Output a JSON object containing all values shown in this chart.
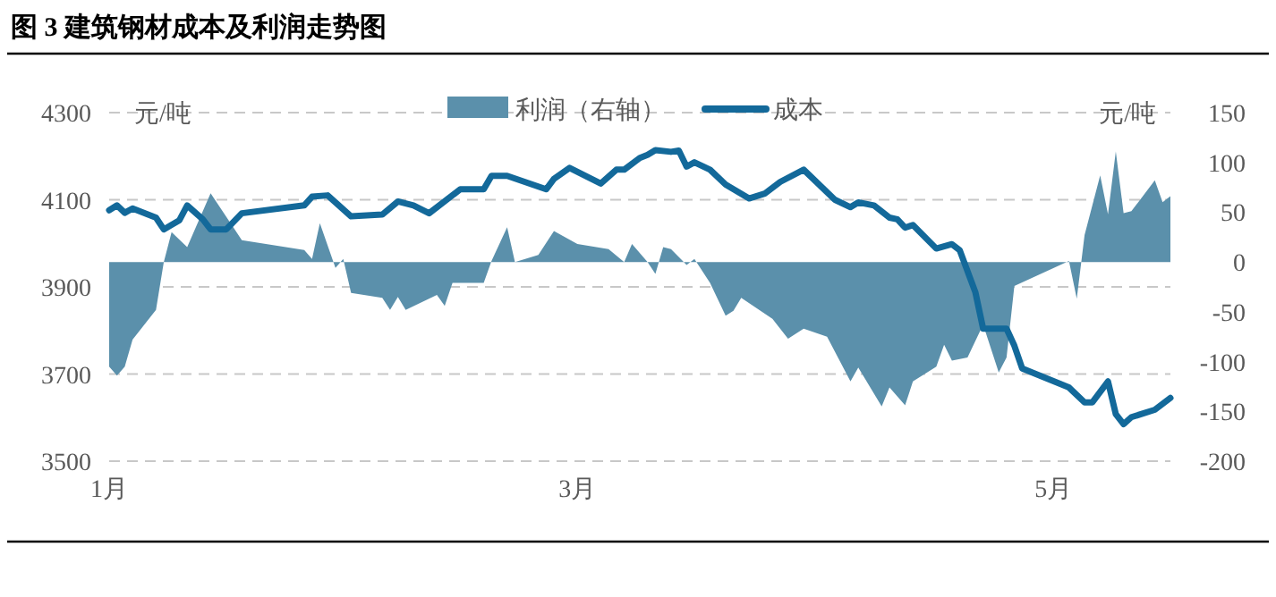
{
  "chart_data": {
    "type": "line",
    "title": "图 3 建筑钢材成本及利润走势图",
    "ylabel": "元/吨",
    "y2label": "元/吨",
    "xlim": [
      "--01-01",
      "--05-16"
    ],
    "xticks": [
      {
        "value": "--01-01",
        "label": "1月"
      },
      {
        "value": "--03-01",
        "label": "3月"
      },
      {
        "value": "--05-01",
        "label": "5月"
      }
    ],
    "ylim": [
      3500,
      4300
    ],
    "yticks": [
      3500,
      3700,
      3900,
      4100,
      4300
    ],
    "y2lim": [
      -200,
      150
    ],
    "y2ticks": [
      -200,
      -150,
      -100,
      -50,
      0,
      50,
      100,
      150
    ],
    "grid": "y",
    "legend": "top",
    "series": [
      {
        "name": "利润（右轴）",
        "type": "area",
        "axis": "y2",
        "color": "#5b90ab",
        "x": [
          "--01-01",
          "--01-02",
          "--01-03",
          "--01-04",
          "--01-07",
          "--01-08",
          "--01-09",
          "--01-11",
          "--01-14",
          "--01-18",
          "--01-26",
          "--01-27",
          "--01-28",
          "--01-30",
          "--01-31",
          "--02-01",
          "--02-05",
          "--02-06",
          "--02-07",
          "--02-08",
          "--02-12",
          "--02-13",
          "--02-14",
          "--02-18",
          "--02-19",
          "--02-21",
          "--02-22",
          "--02-25",
          "--02-27",
          "--03-01",
          "--03-05",
          "--03-07",
          "--03-08",
          "--03-10",
          "--03-11",
          "--03-12",
          "--03-13",
          "--03-15",
          "--03-16",
          "--03-18",
          "--03-20",
          "--03-21",
          "--03-22",
          "--03-26",
          "--03-28",
          "--03-30",
          "--04-02",
          "--04-05",
          "--04-06",
          "--04-09",
          "--04-10",
          "--04-12",
          "--04-13",
          "--04-16",
          "--04-17",
          "--04-18",
          "--04-20",
          "--04-22",
          "--04-24",
          "--04-25",
          "--04-26",
          "--05-03",
          "--05-04",
          "--05-05",
          "--05-07",
          "--05-08",
          "--05-09",
          "--05-10",
          "--05-11",
          "--05-14",
          "--05-15",
          "--05-16"
        ],
        "values": [
          -105,
          -114,
          -105,
          -78,
          -48,
          0,
          30,
          15,
          69,
          22,
          12,
          3,
          39,
          -6,
          3,
          -31,
          -36,
          -48,
          -35,
          -48,
          -33,
          -44,
          -21,
          -21,
          1,
          35,
          0,
          7,
          31,
          18,
          13,
          0,
          18,
          0,
          -12,
          15,
          13,
          -3,
          3,
          -21,
          -54,
          -49,
          -36,
          -57,
          -77,
          -67,
          -75,
          -120,
          -106,
          -145,
          -126,
          -144,
          -120,
          -105,
          -83,
          -99,
          -96,
          -63,
          -111,
          -96,
          -24,
          1,
          -37,
          27,
          87,
          48,
          111,
          49,
          51,
          82,
          60,
          66
        ]
      },
      {
        "name": "成本",
        "type": "line",
        "color": "#13699a",
        "x": [
          "--01-01",
          "--01-02",
          "--01-03",
          "--01-04",
          "--01-07",
          "--01-08",
          "--01-10",
          "--01-11",
          "--01-13",
          "--01-14",
          "--01-16",
          "--01-18",
          "--01-26",
          "--01-27",
          "--01-29",
          "--02-01",
          "--02-05",
          "--02-07",
          "--02-09",
          "--02-11",
          "--02-15",
          "--02-18",
          "--02-19",
          "--02-21",
          "--02-26",
          "--02-27",
          "--02-29",
          "--03-04",
          "--03-06",
          "--03-07",
          "--03-09",
          "--03-10",
          "--03-11",
          "--03-13",
          "--03-14",
          "--03-15",
          "--03-16",
          "--03-18",
          "--03-20",
          "--03-23",
          "--03-25",
          "--03-27",
          "--03-30",
          "--04-03",
          "--04-05",
          "--04-06",
          "--04-08",
          "--04-10",
          "--04-11",
          "--04-12",
          "--04-13",
          "--04-16",
          "--04-18",
          "--04-19",
          "--04-21",
          "--04-22",
          "--04-25",
          "--04-26",
          "--04-27",
          "--05-03",
          "--05-05",
          "--05-06",
          "--05-08",
          "--05-09",
          "--05-10",
          "--05-11",
          "--05-14",
          "--05-16"
        ],
        "values": [
          4076,
          4087,
          4070,
          4080,
          4059,
          4032,
          4053,
          4087,
          4055,
          4032,
          4032,
          4069,
          4087,
          4107,
          4110,
          4062,
          4066,
          4096,
          4087,
          4069,
          4124,
          4124,
          4155,
          4155,
          4124,
          4148,
          4173,
          4137,
          4169,
          4169,
          4196,
          4203,
          4214,
          4210,
          4213,
          4176,
          4186,
          4169,
          4135,
          4103,
          4114,
          4141,
          4169,
          4100,
          4083,
          4094,
          4087,
          4059,
          4055,
          4036,
          4042,
          3988,
          3998,
          3984,
          3888,
          3804,
          3804,
          3765,
          3713,
          3669,
          3635,
          3635,
          3683,
          3608,
          3585,
          3601,
          3618,
          3645
        ]
      }
    ]
  }
}
